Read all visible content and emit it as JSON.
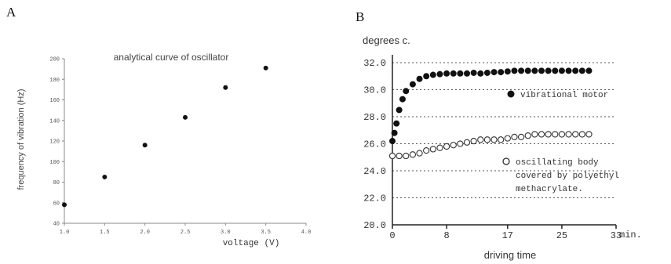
{
  "panels": {
    "a_label": "A",
    "b_label": "B"
  },
  "chart_data": [
    {
      "type": "scatter",
      "title": "analytical curve of oscillator",
      "xlabel": "voltage (V)",
      "ylabel": "frequency of vibration (Hz)",
      "xlim": [
        1.0,
        4.0
      ],
      "ylim": [
        40,
        200
      ],
      "x_ticks": [
        "1.0",
        "1.5",
        "2.0",
        "2.5",
        "3.0",
        "3.5",
        "4.0"
      ],
      "y_ticks": [
        "40",
        "60",
        "80",
        "100",
        "120",
        "140",
        "160",
        "180",
        "200"
      ],
      "grid": false,
      "series": [
        {
          "x": [
            1.0,
            1.5,
            2.0,
            2.5,
            3.0,
            3.5
          ],
          "y": [
            58,
            85,
            116,
            143,
            172,
            191
          ]
        }
      ]
    },
    {
      "type": "scatter",
      "title": "",
      "ylabel": "degrees c.",
      "xlabel": "driving time",
      "x_unit": "min.",
      "xlim": [
        0,
        33
      ],
      "ylim": [
        20,
        32
      ],
      "x_ticks": [
        "0",
        "8",
        "17",
        "25",
        "33"
      ],
      "y_ticks": [
        "20.0",
        "22.0",
        "24.0",
        "26.0",
        "28.0",
        "30.0",
        "32.0"
      ],
      "grid": "horizontal-dotted",
      "series": [
        {
          "name": "vibrational motor",
          "marker": "filled-circle",
          "x": [
            0,
            0.3,
            0.6,
            1,
            1.5,
            2,
            3,
            4,
            5,
            6,
            7,
            8,
            9,
            10,
            11,
            12,
            13,
            14,
            15,
            16,
            17,
            18,
            19,
            20,
            21,
            22,
            23,
            24,
            25,
            26,
            27,
            28,
            29
          ],
          "y": [
            26.2,
            26.8,
            27.5,
            28.5,
            29.3,
            29.9,
            30.4,
            30.8,
            31.0,
            31.1,
            31.15,
            31.2,
            31.2,
            31.2,
            31.2,
            31.25,
            31.2,
            31.25,
            31.3,
            31.3,
            31.35,
            31.4,
            31.4,
            31.4,
            31.4,
            31.4,
            31.4,
            31.4,
            31.4,
            31.4,
            31.4,
            31.4,
            31.4
          ]
        },
        {
          "name": "oscillating body covered by polyethyl methacrylate.",
          "marker": "open-circle",
          "x": [
            0,
            1,
            2,
            3,
            4,
            5,
            6,
            7,
            8,
            9,
            10,
            11,
            12,
            13,
            14,
            15,
            16,
            17,
            18,
            19,
            20,
            21,
            22,
            23,
            24,
            25,
            26,
            27,
            28,
            29
          ],
          "y": [
            25.1,
            25.1,
            25.1,
            25.2,
            25.3,
            25.5,
            25.6,
            25.7,
            25.8,
            25.9,
            26.0,
            26.1,
            26.2,
            26.3,
            26.3,
            26.3,
            26.3,
            26.4,
            26.5,
            26.5,
            26.6,
            26.7,
            26.7,
            26.7,
            26.7,
            26.7,
            26.7,
            26.7,
            26.7,
            26.7
          ]
        }
      ],
      "annotations": [
        {
          "text": "vibrational motor",
          "marker": "filled-circle"
        },
        {
          "text_lines": [
            "oscillating body",
            "covered by polyethyl",
            "methacrylate."
          ],
          "marker": "open-circle"
        }
      ]
    }
  ]
}
